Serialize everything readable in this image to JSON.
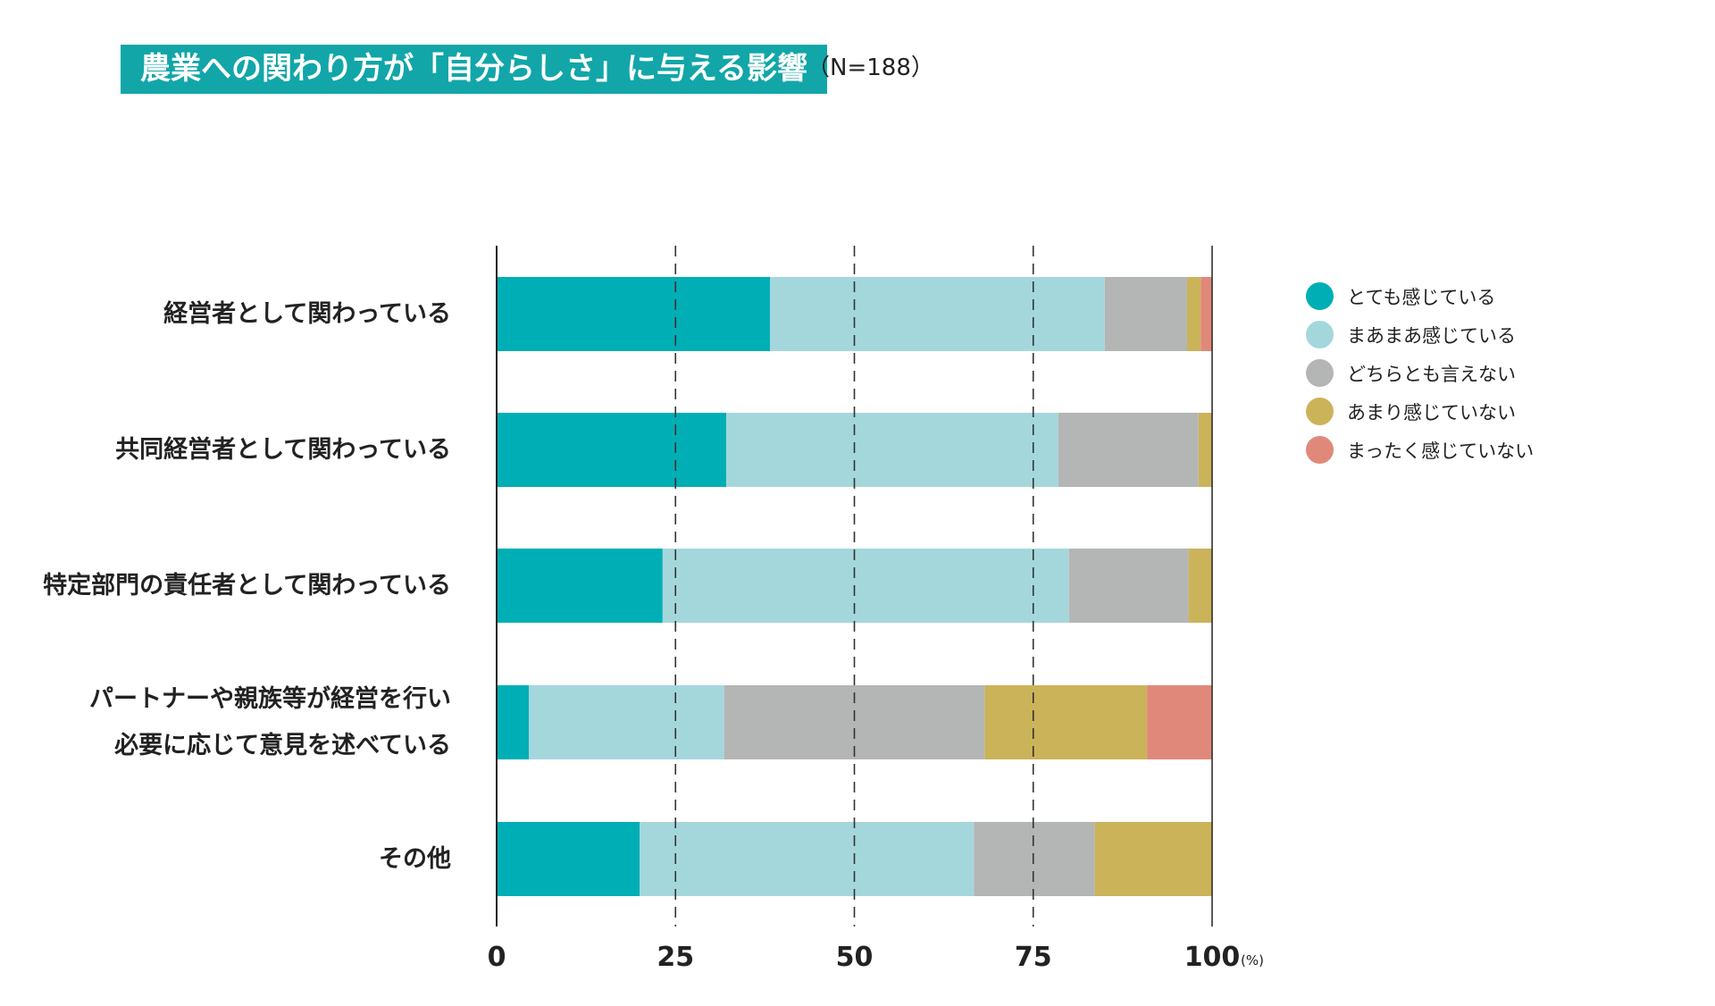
{
  "header": {
    "title": "農業への関わり方が「自分らしさ」に与える影響",
    "sample": "（N=188）"
  },
  "chart_data": {
    "type": "bar",
    "orientation": "horizontal",
    "stacked": true,
    "title": "農業への関わり方が「自分らしさ」に与える影響",
    "subtitle": "（N=188）",
    "categories": [
      "経営者として関わっている",
      "共同経営者として関わっている",
      "特定部門の責任者として関わっている",
      "パートナーや親族等が経営を行い必要に応じて意見を述べている",
      "その他"
    ],
    "category_lines": [
      [
        "経営者として関わっている"
      ],
      [
        "共同経営者として関わっている"
      ],
      [
        "特定部門の責任者として関わっている"
      ],
      [
        "パートナーや親族等が経営を行い",
        "必要に応じて意見を述べている"
      ],
      [
        "その他"
      ]
    ],
    "series": [
      {
        "name": "とても感じている",
        "color": "#00aeb5",
        "values": [
          38.2,
          32.1,
          23.2,
          4.5,
          20.0
        ]
      },
      {
        "name": "まあまあ感じている",
        "color": "#a4d7dc",
        "values": [
          46.8,
          46.4,
          56.8,
          27.3,
          46.7
        ]
      },
      {
        "name": "どちらとも言えない",
        "color": "#b4b5b5",
        "values": [
          11.5,
          19.6,
          16.7,
          36.4,
          16.9
        ]
      },
      {
        "name": "あまり感じていない",
        "color": "#cbb35a",
        "values": [
          1.9,
          1.9,
          3.3,
          22.7,
          16.4
        ]
      },
      {
        "name": "まったく感じていない",
        "color": "#e0897a",
        "values": [
          1.6,
          0,
          0,
          9.1,
          0
        ]
      }
    ],
    "xlim": [
      0,
      100
    ],
    "xticks": [
      "0",
      "25",
      "50",
      "75",
      "100"
    ],
    "x_unit": "(%)",
    "gridlines": [
      25,
      50,
      75
    ],
    "grid_style": "dashed",
    "legend_position": "right"
  }
}
